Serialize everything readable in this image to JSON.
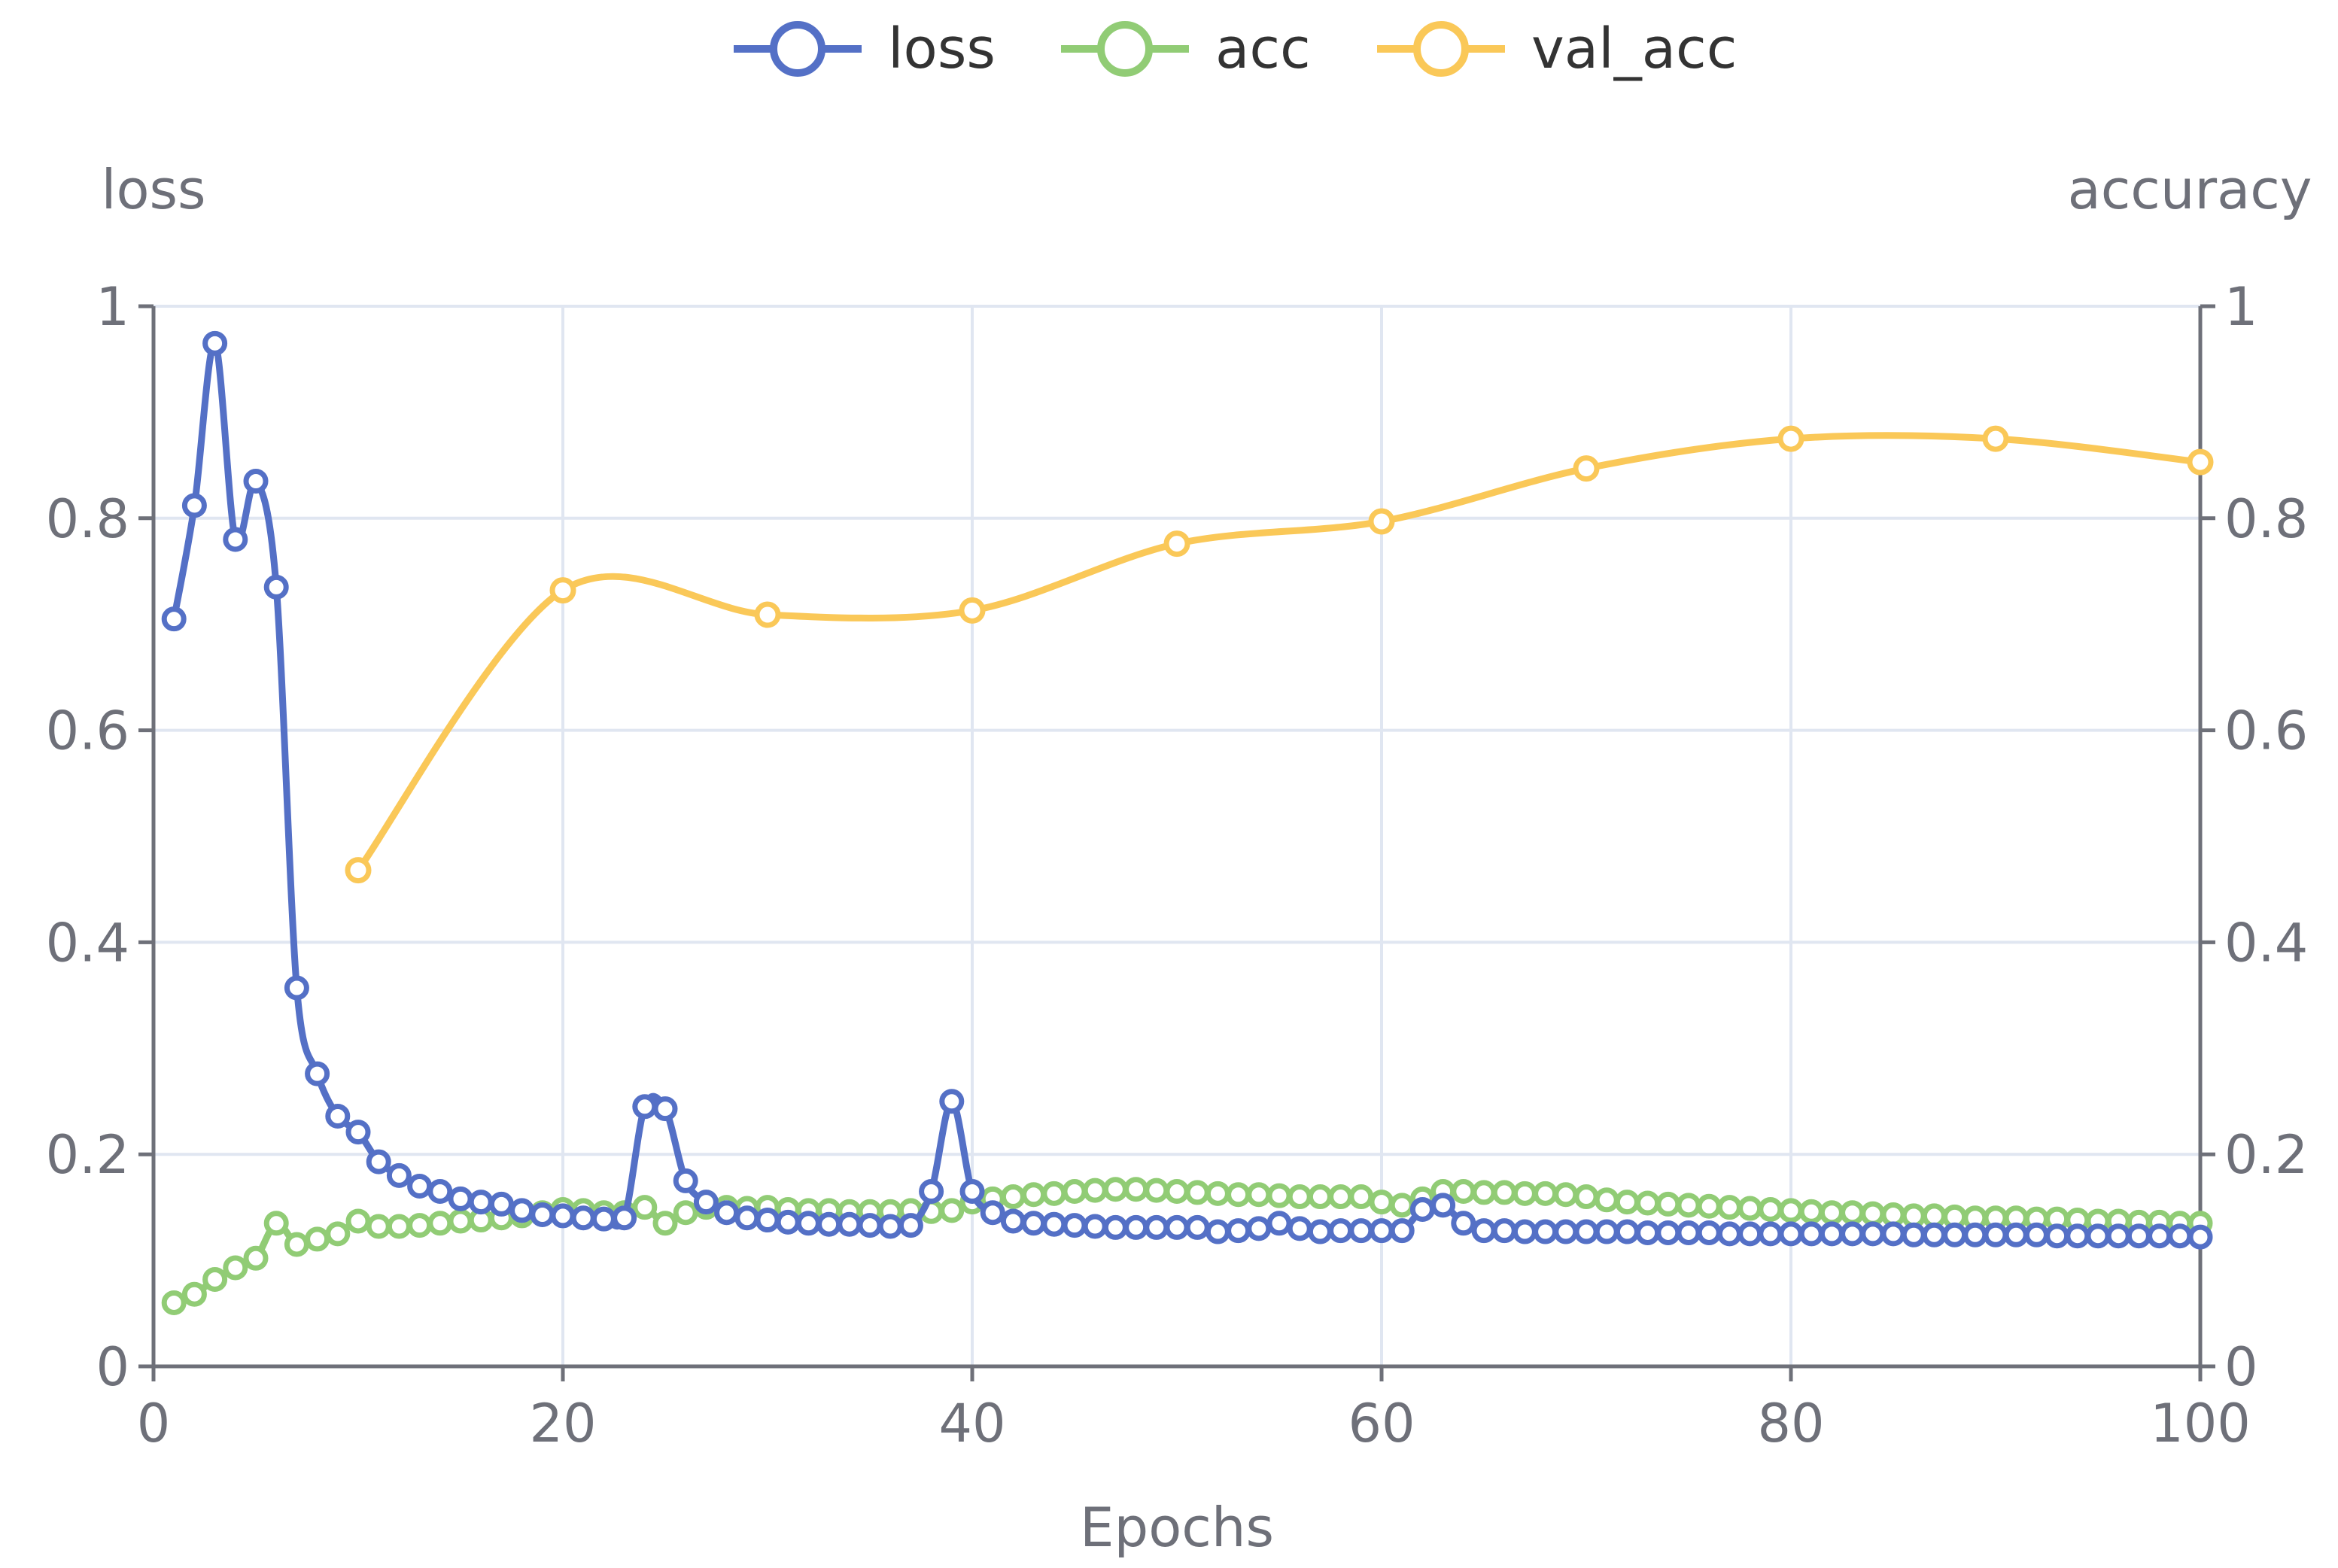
{
  "chart_data": {
    "type": "line",
    "xlabel": "Epochs",
    "y_left_label": "loss",
    "y_right_label": "accuracy",
    "xlim": [
      0,
      100
    ],
    "ylim_left": [
      0,
      1
    ],
    "ylim_right": [
      0,
      1
    ],
    "x_ticks": [
      0,
      20,
      40,
      60,
      80,
      100
    ],
    "y_ticks": [
      0,
      0.2,
      0.4,
      0.6,
      0.8,
      1
    ],
    "x_tick_labels": [
      "0",
      "20",
      "40",
      "60",
      "80",
      "100"
    ],
    "y_left_tick_labels": [
      "0",
      "0.2",
      "0.4",
      "0.6",
      "0.8",
      "1"
    ],
    "y_right_tick_labels": [
      "0",
      "0.2",
      "0.4",
      "0.6",
      "0.8",
      "1"
    ],
    "grid": true,
    "legend_position": "top-center",
    "series": [
      {
        "name": "loss",
        "axis": "left",
        "color": "#5470c6",
        "x": [
          1,
          2,
          3,
          4,
          5,
          6,
          7,
          8,
          9,
          10,
          11,
          12,
          13,
          14,
          15,
          16,
          17,
          18,
          19,
          20,
          21,
          22,
          23,
          24,
          25,
          26,
          27,
          28,
          29,
          30,
          31,
          32,
          33,
          34,
          35,
          36,
          37,
          38,
          39,
          40,
          41,
          42,
          43,
          44,
          45,
          46,
          47,
          48,
          49,
          50,
          51,
          52,
          53,
          54,
          55,
          56,
          57,
          58,
          59,
          60,
          61,
          62,
          63,
          64,
          65,
          66,
          67,
          68,
          69,
          70,
          71,
          72,
          73,
          74,
          75,
          76,
          77,
          78,
          79,
          80,
          81,
          82,
          83,
          84,
          85,
          86,
          87,
          88,
          89,
          90,
          91,
          92,
          93,
          94,
          95,
          96,
          97,
          98,
          99,
          100
        ],
        "values": [
          0.705,
          0.812,
          0.965,
          0.78,
          0.835,
          0.735,
          0.357,
          0.276,
          0.236,
          0.221,
          0.193,
          0.18,
          0.17,
          0.165,
          0.158,
          0.155,
          0.153,
          0.147,
          0.143,
          0.142,
          0.14,
          0.139,
          0.14,
          0.245,
          0.243,
          0.175,
          0.155,
          0.145,
          0.14,
          0.138,
          0.136,
          0.135,
          0.134,
          0.134,
          0.133,
          0.132,
          0.133,
          0.165,
          0.25,
          0.165,
          0.145,
          0.137,
          0.135,
          0.134,
          0.133,
          0.132,
          0.131,
          0.131,
          0.131,
          0.131,
          0.131,
          0.127,
          0.128,
          0.13,
          0.135,
          0.13,
          0.127,
          0.128,
          0.128,
          0.128,
          0.128,
          0.148,
          0.152,
          0.135,
          0.128,
          0.128,
          0.127,
          0.127,
          0.127,
          0.127,
          0.127,
          0.127,
          0.126,
          0.126,
          0.126,
          0.126,
          0.125,
          0.125,
          0.125,
          0.125,
          0.125,
          0.125,
          0.125,
          0.125,
          0.125,
          0.124,
          0.124,
          0.124,
          0.124,
          0.124,
          0.124,
          0.124,
          0.123,
          0.123,
          0.123,
          0.123,
          0.123,
          0.123,
          0.123,
          0.122
        ]
      },
      {
        "name": "acc",
        "axis": "right",
        "color": "#91cc75",
        "x": [
          1,
          2,
          3,
          4,
          5,
          6,
          7,
          8,
          9,
          10,
          11,
          12,
          13,
          14,
          15,
          16,
          17,
          18,
          19,
          20,
          21,
          22,
          23,
          24,
          25,
          26,
          27,
          28,
          29,
          30,
          31,
          32,
          33,
          34,
          35,
          36,
          37,
          38,
          39,
          40,
          41,
          42,
          43,
          44,
          45,
          46,
          47,
          48,
          49,
          50,
          51,
          52,
          53,
          54,
          55,
          56,
          57,
          58,
          59,
          60,
          61,
          62,
          63,
          64,
          65,
          66,
          67,
          68,
          69,
          70,
          71,
          72,
          73,
          74,
          75,
          76,
          77,
          78,
          79,
          80,
          81,
          82,
          83,
          84,
          85,
          86,
          87,
          88,
          89,
          90,
          91,
          92,
          93,
          94,
          95,
          96,
          97,
          98,
          99,
          100
        ],
        "values": [
          0.06,
          0.068,
          0.082,
          0.093,
          0.102,
          0.135,
          0.115,
          0.12,
          0.125,
          0.137,
          0.132,
          0.132,
          0.133,
          0.135,
          0.137,
          0.138,
          0.14,
          0.142,
          0.145,
          0.148,
          0.147,
          0.145,
          0.145,
          0.15,
          0.135,
          0.145,
          0.15,
          0.15,
          0.149,
          0.15,
          0.148,
          0.147,
          0.147,
          0.146,
          0.146,
          0.146,
          0.147,
          0.146,
          0.147,
          0.155,
          0.158,
          0.16,
          0.162,
          0.163,
          0.165,
          0.166,
          0.167,
          0.167,
          0.166,
          0.165,
          0.164,
          0.163,
          0.162,
          0.162,
          0.161,
          0.16,
          0.16,
          0.16,
          0.16,
          0.155,
          0.152,
          0.158,
          0.165,
          0.165,
          0.164,
          0.164,
          0.163,
          0.163,
          0.162,
          0.16,
          0.157,
          0.155,
          0.154,
          0.153,
          0.152,
          0.151,
          0.15,
          0.149,
          0.148,
          0.147,
          0.146,
          0.145,
          0.145,
          0.144,
          0.143,
          0.142,
          0.142,
          0.141,
          0.14,
          0.14,
          0.14,
          0.139,
          0.139,
          0.138,
          0.137,
          0.137,
          0.136,
          0.136,
          0.135,
          0.135
        ]
      },
      {
        "name": "val_acc",
        "axis": "right",
        "color": "#fac858",
        "x": [
          10,
          20,
          30,
          40,
          50,
          60,
          70,
          80,
          90,
          100
        ],
        "values": [
          0.468,
          0.732,
          0.709,
          0.713,
          0.776,
          0.797,
          0.847,
          0.875,
          0.875,
          0.853
        ]
      }
    ]
  }
}
